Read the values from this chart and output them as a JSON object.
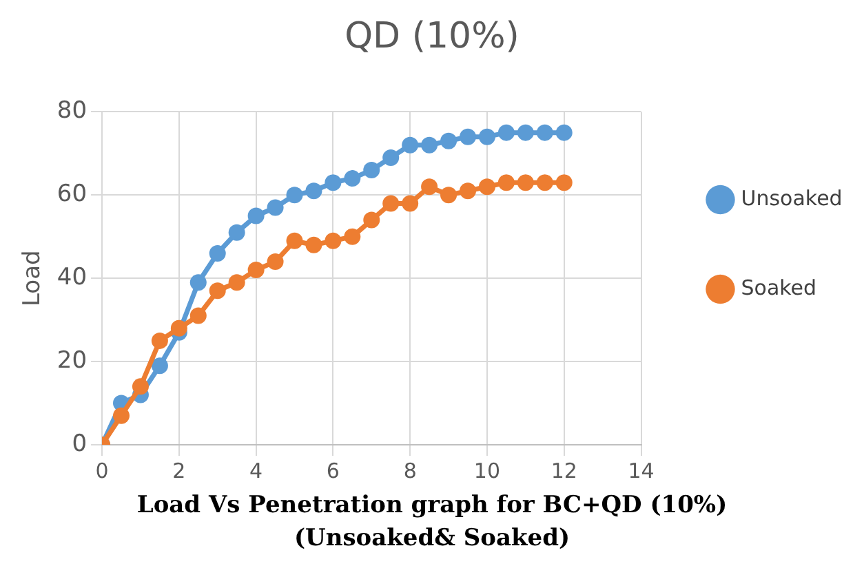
{
  "chart_data": {
    "type": "line",
    "title": "QD (10%)",
    "ylabel": "Load",
    "x": [
      0,
      0.5,
      1,
      1.5,
      2,
      2.5,
      3,
      3.5,
      4,
      4.5,
      5,
      5.5,
      6,
      6.5,
      7,
      7.5,
      8,
      8.5,
      9,
      9.5,
      10,
      10.5,
      11,
      11.5,
      12
    ],
    "series": [
      {
        "name": "Unsoaked",
        "color": "#5b9bd5",
        "values": [
          0,
          10,
          12,
          19,
          27,
          39,
          46,
          51,
          55,
          57,
          60,
          61,
          63,
          64,
          66,
          69,
          72,
          72,
          73,
          74,
          74,
          75,
          75,
          75,
          75
        ]
      },
      {
        "name": "Soaked",
        "color": "#ed7d31",
        "values": [
          0,
          7,
          14,
          25,
          28,
          31,
          37,
          39,
          42,
          44,
          49,
          48,
          49,
          50,
          54,
          58,
          58,
          62,
          60,
          61,
          62,
          63,
          63,
          63,
          63
        ]
      }
    ],
    "xlim": [
      0,
      14
    ],
    "xticks": [
      0,
      2,
      4,
      6,
      8,
      10,
      12,
      14
    ],
    "ylim": [
      0,
      80
    ],
    "yticks": [
      0,
      20,
      40,
      60,
      80
    ],
    "grid": true,
    "legend": "right",
    "marker": "circle",
    "line_style": "solid",
    "annotations": [
      "Load Vs Penetration graph for BC+QD (10%)",
      "(Unsoaked& Soaked)"
    ]
  }
}
